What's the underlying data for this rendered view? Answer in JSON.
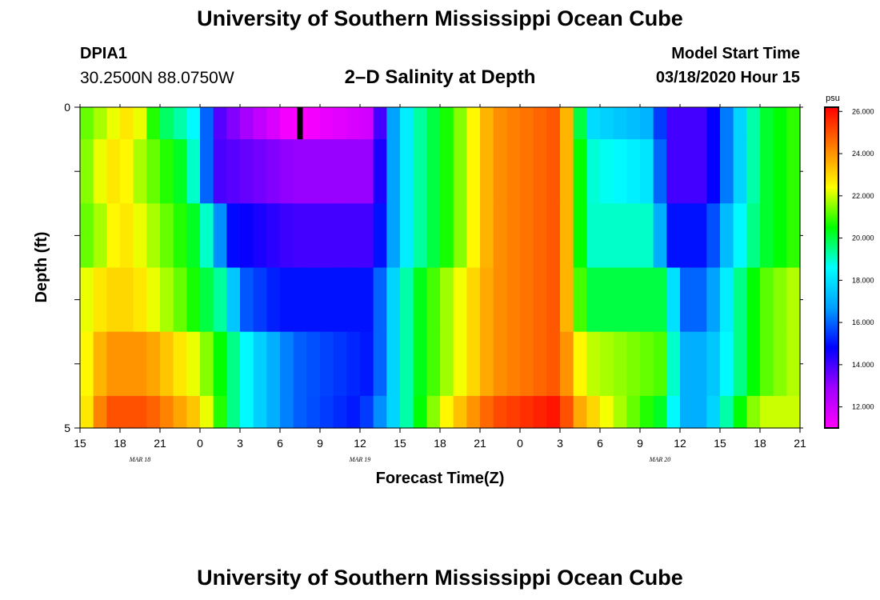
{
  "header": {
    "title": "University of Southern Mississippi Ocean Cube",
    "station_id": "DPIA1",
    "station_location": "30.2500N 88.0750W",
    "plot_title": "2–D Salinity at Depth",
    "model_start_label": "Model Start Time",
    "model_start_value": "03/18/2020 Hour 15"
  },
  "footer": {
    "title": "University of Southern Mississippi Ocean Cube"
  },
  "chart_data": {
    "type": "heatmap",
    "title": "2–D Salinity at Depth",
    "xlabel": "Forecast Time(Z)",
    "ylabel": "Depth (ft)",
    "x_tick_labels": [
      "15",
      "18",
      "21",
      "0",
      "3",
      "6",
      "9",
      "12",
      "15",
      "18",
      "21",
      "0",
      "3",
      "6",
      "9",
      "12",
      "15",
      "18",
      "21"
    ],
    "x_date_labels": [
      {
        "text": "MAR 18",
        "hour_offset": 4.5
      },
      {
        "text": "MAR 19",
        "hour_offset": 21
      },
      {
        "text": "MAR 20",
        "hour_offset": 43.5
      }
    ],
    "x_range_hours": [
      0,
      54
    ],
    "y_tick_labels": [
      "0",
      "5"
    ],
    "y_range": [
      0,
      5
    ],
    "y_minor_ticks": 5,
    "depth_levels": [
      0,
      1,
      2,
      3,
      4,
      5
    ],
    "colorbar": {
      "unit": "psu",
      "min": 11,
      "max": 26.2,
      "tick_labels": [
        "12.000",
        "14.000",
        "16.000",
        "18.000",
        "20.000",
        "22.000",
        "24.000",
        "26.000"
      ],
      "tick_values": [
        12,
        14,
        16,
        18,
        20,
        22,
        24,
        26
      ],
      "colors": [
        "#ff00ff",
        "#a000ff",
        "#0000ff",
        "#00a0ff",
        "#00ffff",
        "#00ff00",
        "#ffff00",
        "#ff8000",
        "#ff0000"
      ]
    },
    "marker": {
      "hour_offset": 16.5,
      "depth_from": 0,
      "depth_to": 0.5,
      "color": "#000000"
    },
    "salinity_keyframes": [
      [
        [
          0,
          21
        ],
        [
          2,
          22
        ],
        [
          4,
          23
        ],
        [
          6,
          20
        ],
        [
          8,
          19
        ],
        [
          9,
          18
        ],
        [
          10,
          14
        ],
        [
          16,
          11
        ],
        [
          22,
          12
        ],
        [
          23,
          16
        ],
        [
          25,
          19
        ],
        [
          28,
          21
        ],
        [
          31,
          24
        ],
        [
          36,
          25
        ],
        [
          37,
          22
        ],
        [
          38,
          18
        ],
        [
          43,
          17
        ],
        [
          44,
          14
        ],
        [
          47,
          14
        ],
        [
          49,
          17
        ],
        [
          51,
          20
        ],
        [
          54,
          21
        ]
      ],
      [
        [
          0,
          21
        ],
        [
          1,
          22
        ],
        [
          3,
          23
        ],
        [
          4,
          22
        ],
        [
          6,
          21
        ],
        [
          8,
          20
        ],
        [
          9,
          18
        ],
        [
          10,
          14
        ],
        [
          16,
          13
        ],
        [
          22,
          13
        ],
        [
          23,
          16
        ],
        [
          25,
          19
        ],
        [
          28,
          21
        ],
        [
          31,
          24
        ],
        [
          36,
          25
        ],
        [
          37,
          22
        ],
        [
          38,
          19
        ],
        [
          43,
          18
        ],
        [
          44,
          14
        ],
        [
          47,
          14
        ],
        [
          49,
          17
        ],
        [
          51,
          20
        ],
        [
          54,
          21
        ]
      ],
      [
        [
          0,
          21
        ],
        [
          2,
          22
        ],
        [
          3,
          23
        ],
        [
          5,
          22
        ],
        [
          7,
          21
        ],
        [
          9,
          20
        ],
        [
          10,
          18
        ],
        [
          11,
          15
        ],
        [
          16,
          14
        ],
        [
          22,
          14
        ],
        [
          23,
          16
        ],
        [
          25,
          19
        ],
        [
          28,
          21
        ],
        [
          31,
          24
        ],
        [
          36,
          25
        ],
        [
          37,
          22
        ],
        [
          38,
          19
        ],
        [
          43,
          19
        ],
        [
          44,
          15
        ],
        [
          47,
          15
        ],
        [
          49,
          18
        ],
        [
          51,
          20
        ],
        [
          54,
          21
        ]
      ],
      [
        [
          0,
          22
        ],
        [
          2,
          23
        ],
        [
          4,
          23
        ],
        [
          6,
          22
        ],
        [
          8,
          21
        ],
        [
          11,
          19
        ],
        [
          12,
          16
        ],
        [
          15,
          15
        ],
        [
          22,
          15
        ],
        [
          23,
          17
        ],
        [
          25,
          20
        ],
        [
          28,
          22
        ],
        [
          31,
          24
        ],
        [
          36,
          25
        ],
        [
          37,
          22
        ],
        [
          38,
          20
        ],
        [
          44,
          20
        ],
        [
          45,
          16
        ],
        [
          47,
          16
        ],
        [
          49,
          19
        ],
        [
          51,
          21
        ],
        [
          54,
          22
        ]
      ],
      [
        [
          0,
          22
        ],
        [
          2,
          24
        ],
        [
          5,
          24
        ],
        [
          7,
          23
        ],
        [
          9,
          22
        ],
        [
          11,
          20
        ],
        [
          13,
          18
        ],
        [
          16,
          16
        ],
        [
          22,
          15
        ],
        [
          23,
          17
        ],
        [
          25,
          20
        ],
        [
          28,
          22
        ],
        [
          31,
          24
        ],
        [
          36,
          25
        ],
        [
          37,
          23
        ],
        [
          38,
          22
        ],
        [
          44,
          21
        ],
        [
          45,
          17
        ],
        [
          47,
          17
        ],
        [
          49,
          19
        ],
        [
          51,
          21
        ],
        [
          54,
          22
        ]
      ],
      [
        [
          0,
          22
        ],
        [
          2,
          25
        ],
        [
          5,
          25
        ],
        [
          7,
          24
        ],
        [
          9,
          23
        ],
        [
          11,
          20
        ],
        [
          13,
          18
        ],
        [
          16,
          16
        ],
        [
          21,
          15
        ],
        [
          23,
          17
        ],
        [
          25,
          20
        ],
        [
          28,
          23
        ],
        [
          31,
          25
        ],
        [
          36,
          26
        ],
        [
          37,
          24
        ],
        [
          40,
          22
        ],
        [
          44,
          20
        ],
        [
          45,
          17
        ],
        [
          47,
          17
        ],
        [
          49,
          20
        ],
        [
          51,
          22
        ],
        [
          54,
          22
        ]
      ]
    ]
  }
}
